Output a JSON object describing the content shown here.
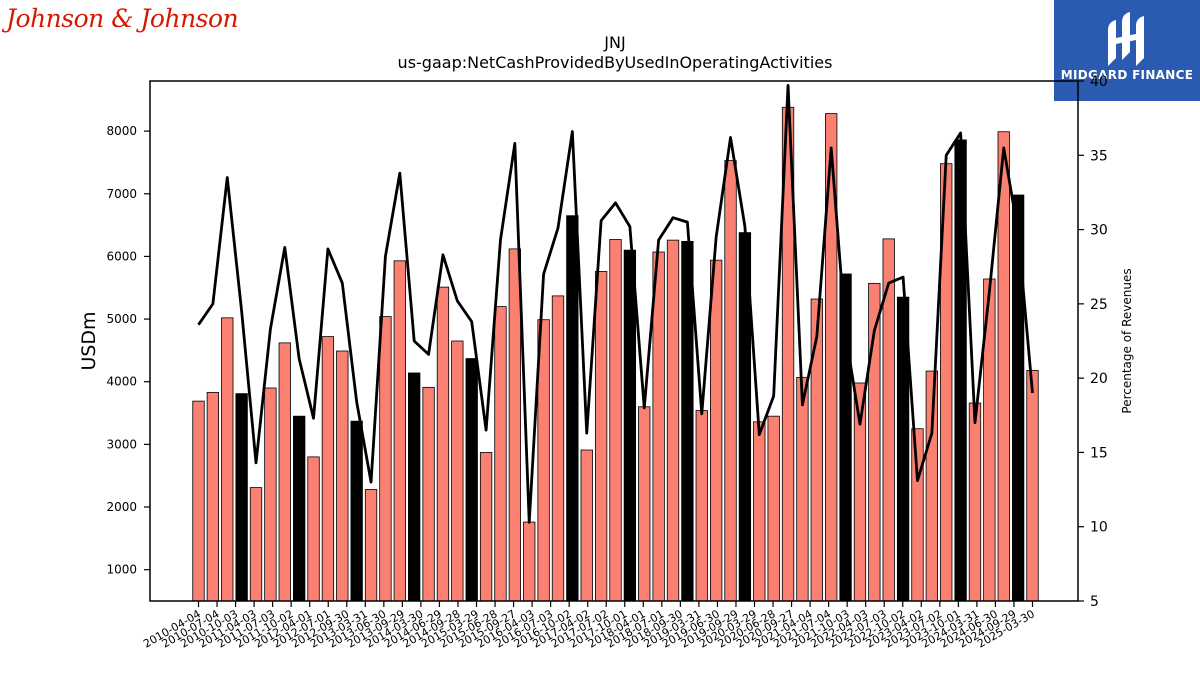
{
  "brand": {
    "left_logo_text": "Johnson & Johnson",
    "right_logo_text": "MIDGARD FINANCE",
    "right_logo_icon": "midgard-m-icon",
    "right_logo_color": "#2a5bb0"
  },
  "chart_data": {
    "type": "bar",
    "title": "JNJ",
    "subtitle": "us-gaap:NetCashProvidedByUsedInOperatingActivities",
    "ylabel": "USDm",
    "ylabel_right": "Percentage of Revenues",
    "ylim": [
      500,
      8800
    ],
    "ylim_right": [
      5,
      40
    ],
    "yticks": [
      1000,
      2000,
      3000,
      4000,
      5000,
      6000,
      7000,
      8000
    ],
    "yticks_right": [
      5,
      10,
      15,
      20,
      25,
      30,
      35,
      40
    ],
    "bar_color": "#fa8072",
    "highlight_color": "#000000",
    "line_color": "#000000",
    "grid": false,
    "x_tick_labels": [
      "2010-04-04",
      "2010-07-04",
      "2010-10-03",
      "2011-04-03",
      "2011-07-03",
      "2011-10-02",
      "2012-04-01",
      "2012-07-01",
      "2012-09-30",
      "2013-03-31",
      "2013-06-30",
      "2013-09-29",
      "2014-03-30",
      "2014-06-29",
      "2014-09-28",
      "2015-03-29",
      "2015-06-28",
      "2015-09-27",
      "2016-04-03",
      "2016-07-03",
      "2016-10-02",
      "2017-04-02",
      "2017-07-02",
      "2017-10-01",
      "2018-04-01",
      "2018-07-01",
      "2018-09-30",
      "2019-03-31",
      "2019-06-30",
      "2019-09-29",
      "2020-03-29",
      "2020-06-28",
      "2020-09-27",
      "2021-04-04",
      "2021-07-04",
      "2021-10-03",
      "2022-04-03",
      "2022-07-03",
      "2022-10-02",
      "2023-04-02",
      "2023-07-02",
      "2023-10-01",
      "2024-03-31",
      "2024-06-30",
      "2024-09-29",
      "2025-03-30"
    ],
    "values": [
      3690,
      3830,
      5020,
      3810,
      2310,
      3900,
      4620,
      3450,
      2800,
      4720,
      4490,
      3370,
      2280,
      5040,
      5930,
      4140,
      3910,
      5510,
      4650,
      4370,
      2870,
      5200,
      6120,
      1760,
      4990,
      5370,
      6650,
      2910,
      5760,
      6270,
      6100,
      3600,
      6070,
      6260,
      6240,
      3540,
      5940,
      7530,
      6380,
      3360,
      3450,
      8380,
      4070,
      5320,
      8280,
      5720,
      3980,
      5570,
      6280,
      5350,
      3250,
      4170,
      7480,
      7860,
      3660,
      5640,
      7990,
      6980,
      4180
    ],
    "highlight": [
      false,
      false,
      false,
      true,
      false,
      false,
      false,
      true,
      false,
      false,
      false,
      true,
      false,
      false,
      false,
      true,
      false,
      false,
      false,
      true,
      false,
      false,
      false,
      false,
      false,
      false,
      true,
      false,
      false,
      false,
      true,
      false,
      false,
      false,
      true,
      false,
      false,
      false,
      true,
      false,
      false,
      false,
      false,
      false,
      false,
      true,
      false,
      false,
      false,
      true,
      false,
      false,
      false,
      true,
      false,
      false,
      false,
      true,
      false
    ],
    "pct_of_revenues": [
      23.6,
      25.0,
      33.5,
      24.5,
      14.3,
      23.3,
      28.8,
      21.3,
      17.3,
      28.7,
      26.4,
      18.4,
      13.0,
      28.2,
      33.8,
      22.5,
      21.6,
      28.3,
      25.2,
      23.8,
      16.5,
      29.3,
      35.8,
      10.3,
      27.0,
      30.1,
      36.6,
      16.3,
      30.6,
      31.8,
      30.2,
      18.0,
      29.3,
      30.8,
      30.5,
      17.6,
      29.5,
      36.2,
      30.2,
      16.2,
      18.8,
      39.7,
      18.2,
      22.8,
      35.5,
      23.0,
      16.9,
      23.2,
      26.4,
      26.8,
      13.1,
      16.3,
      35.0,
      36.5,
      17.0,
      25.8,
      35.5,
      29.8,
      19.0
    ]
  }
}
